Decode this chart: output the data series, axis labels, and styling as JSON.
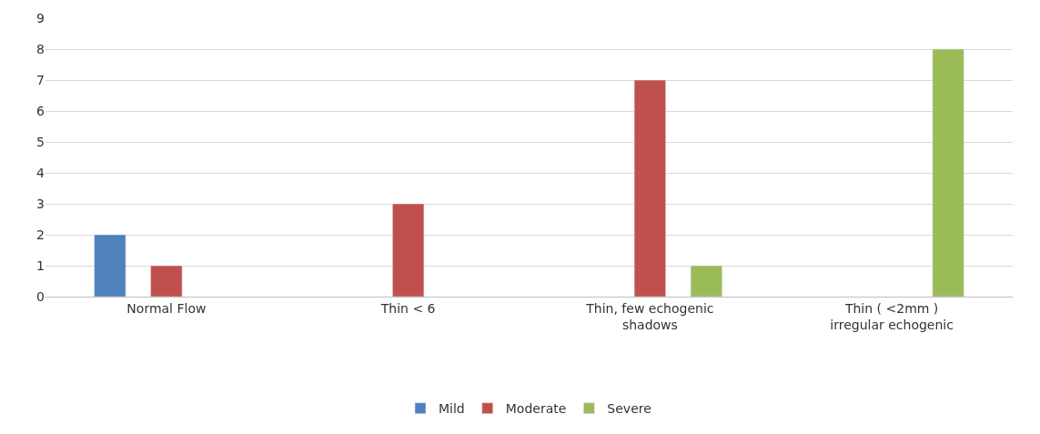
{
  "chart_data": {
    "type": "bar",
    "categories": [
      "Normal Flow",
      "Thin < 6",
      "Thin, few echogenic shadows",
      "Thin ( <2mm ) irregular echogenic"
    ],
    "series": [
      {
        "name": "Mild",
        "color": "#4f81bd",
        "values": [
          2,
          null,
          null,
          null
        ]
      },
      {
        "name": "Moderate",
        "color": "#c0504d",
        "values": [
          1,
          3,
          7,
          null
        ]
      },
      {
        "name": "Severe",
        "color": "#9bbb59",
        "values": [
          null,
          null,
          1,
          8
        ]
      }
    ],
    "ylim": [
      0,
      9
    ],
    "yticks": [
      0,
      1,
      2,
      3,
      4,
      5,
      6,
      7,
      8,
      9
    ],
    "grid": "y",
    "legend": "bottom"
  }
}
